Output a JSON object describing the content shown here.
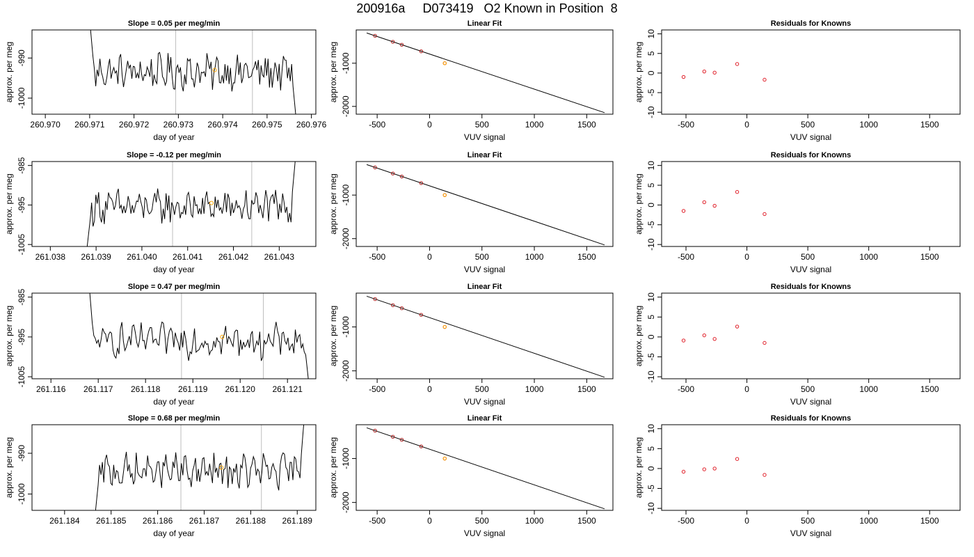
{
  "main_title": "200916a     D073419   O2 Known in Position  8",
  "colors": {
    "trace": "#000000",
    "vline": "#bebebe",
    "highlight": "#ffa500",
    "resid_point": "#e0202a",
    "fit_point": "#b22222",
    "axis": "#000000"
  },
  "chart_data": [
    {
      "type": "line",
      "panel": "time-series-row-1",
      "title": "Slope =  0.05  per meg/min",
      "xlabel": "day of year",
      "ylabel": "approx. per meg",
      "xlim": [
        260.9697,
        260.9761
      ],
      "ylim": [
        -1004,
        -983
      ],
      "x_ticks": [
        "260.970",
        "260.971",
        "260.972",
        "260.973",
        "260.974",
        "260.975",
        "260.976"
      ],
      "x_tick_values": [
        260.97,
        260.971,
        260.972,
        260.973,
        260.974,
        260.975,
        260.976
      ],
      "y_ticks": [
        "-1000",
        "-990"
      ],
      "y_tick_values": [
        -1000,
        -990
      ],
      "vlines": [
        260.97294,
        260.97467
      ],
      "marker": [
        260.97382,
        -993
      ],
      "trace_start": 260.97098,
      "trace_end": 260.97568,
      "trace_level": -993.5,
      "trace_start_value": -978,
      "trace_end_value": -1008
    },
    {
      "type": "line",
      "panel": "time-series-row-2",
      "title": "Slope =  -0.12  per meg/min",
      "xlabel": "day of year",
      "ylabel": "approx. per meg",
      "xlim": [
        261.0376,
        261.0438
      ],
      "ylim": [
        -1005.5,
        -984
      ],
      "x_ticks": [
        "261.038",
        "261.039",
        "261.040",
        "261.041",
        "261.042",
        "261.043"
      ],
      "x_tick_values": [
        261.038,
        261.039,
        261.04,
        261.041,
        261.042,
        261.043
      ],
      "y_ticks": [
        "-1005",
        "-995",
        "-985"
      ],
      "y_tick_values": [
        -1005,
        -995,
        -985
      ],
      "vlines": [
        261.04067,
        261.0424
      ],
      "marker": [
        261.04152,
        -994.5
      ],
      "trace_start": 261.03878,
      "trace_end": 261.04338,
      "trace_level": -995.5,
      "trace_start_value": -1008,
      "trace_end_value": -980
    },
    {
      "type": "line",
      "panel": "time-series-row-3",
      "title": "Slope =  0.47  per meg/min",
      "xlabel": "day of year",
      "ylabel": "approx. per meg",
      "xlim": [
        261.1156,
        261.1216
      ],
      "ylim": [
        -1005.5,
        -984
      ],
      "x_ticks": [
        "261.116",
        "261.117",
        "261.118",
        "261.119",
        "261.120",
        "261.121"
      ],
      "x_tick_values": [
        261.116,
        261.117,
        261.118,
        261.119,
        261.12,
        261.121
      ],
      "y_ticks": [
        "-1005",
        "-995",
        "-985"
      ],
      "y_tick_values": [
        -1005,
        -995,
        -985
      ],
      "vlines": [
        261.11876,
        261.12049
      ],
      "marker": [
        261.11962,
        -995
      ],
      "trace_start": 261.11678,
      "trace_end": 261.12148,
      "trace_level": -996,
      "trace_start_value": -978,
      "trace_end_value": -1010
    },
    {
      "type": "line",
      "panel": "time-series-row-4",
      "title": "Slope =  0.68  per meg/min",
      "xlabel": "day of year",
      "ylabel": "approx. per meg",
      "xlim": [
        261.1833,
        261.1894
      ],
      "ylim": [
        -1004,
        -983
      ],
      "x_ticks": [
        "261.184",
        "261.185",
        "261.186",
        "261.187",
        "261.188",
        "261.189"
      ],
      "x_tick_values": [
        261.184,
        261.185,
        261.186,
        261.187,
        261.188,
        261.189
      ],
      "y_ticks": [
        "-1000",
        "-990"
      ],
      "y_tick_values": [
        -1000,
        -990
      ],
      "vlines": [
        261.1865,
        261.18823
      ],
      "marker": [
        261.18737,
        -993.5
      ],
      "trace_start": 261.18463,
      "trace_end": 261.18918,
      "trace_level": -994.5,
      "trace_start_value": -1008,
      "trace_end_value": -977
    },
    {
      "type": "scatter",
      "panel": "linear-fit-row-1",
      "title": "Linear Fit",
      "xlabel": "VUV signal",
      "ylabel": "approx. per meg",
      "xlim": [
        -700,
        1750
      ],
      "ylim": [
        -2180,
        -230
      ],
      "x_ticks": [
        "-500",
        "0",
        "500",
        "1000",
        "1500"
      ],
      "x_tick_values": [
        -500,
        0,
        500,
        1000,
        1500
      ],
      "y_ticks": [
        "-2000",
        "-1000"
      ],
      "y_tick_values": [
        -2000,
        -1000
      ],
      "line": [
        [
          -600,
          -300
        ],
        [
          1670,
          -2145
        ]
      ],
      "points": [
        [
          -520,
          -366
        ],
        [
          -350,
          -505
        ],
        [
          -265,
          -574
        ],
        [
          -80,
          -724
        ],
        [
          145,
          -1000
        ]
      ],
      "highlight_point": [
        145,
        -1000
      ]
    },
    {
      "type": "scatter",
      "panel": "linear-fit-row-2",
      "title": "Linear Fit",
      "xlabel": "VUV signal",
      "ylabel": "approx. per meg",
      "xlim": [
        -700,
        1750
      ],
      "ylim": [
        -2180,
        -230
      ],
      "x_ticks": [
        "-500",
        "0",
        "500",
        "1000",
        "1500"
      ],
      "x_tick_values": [
        -500,
        0,
        500,
        1000,
        1500
      ],
      "y_ticks": [
        "-2000",
        "-1000"
      ],
      "y_tick_values": [
        -2000,
        -1000
      ],
      "line": [
        [
          -600,
          -300
        ],
        [
          1670,
          -2145
        ]
      ],
      "points": [
        [
          -520,
          -366
        ],
        [
          -350,
          -505
        ],
        [
          -265,
          -574
        ],
        [
          -80,
          -724
        ],
        [
          145,
          -1000
        ]
      ],
      "highlight_point": [
        145,
        -1000
      ]
    },
    {
      "type": "scatter",
      "panel": "linear-fit-row-3",
      "title": "Linear Fit",
      "xlabel": "VUV signal",
      "ylabel": "approx. per meg",
      "xlim": [
        -700,
        1750
      ],
      "ylim": [
        -2180,
        -230
      ],
      "x_ticks": [
        "-500",
        "0",
        "500",
        "1000",
        "1500"
      ],
      "x_tick_values": [
        -500,
        0,
        500,
        1000,
        1500
      ],
      "y_ticks": [
        "-2000",
        "-1000"
      ],
      "y_tick_values": [
        -2000,
        -1000
      ],
      "line": [
        [
          -600,
          -300
        ],
        [
          1670,
          -2145
        ]
      ],
      "points": [
        [
          -520,
          -366
        ],
        [
          -350,
          -505
        ],
        [
          -265,
          -574
        ],
        [
          -80,
          -724
        ],
        [
          145,
          -1000
        ]
      ],
      "highlight_point": [
        145,
        -1000
      ]
    },
    {
      "type": "scatter",
      "panel": "linear-fit-row-4",
      "title": "Linear Fit",
      "xlabel": "VUV signal",
      "ylabel": "approx. per meg",
      "xlim": [
        -700,
        1750
      ],
      "ylim": [
        -2180,
        -230
      ],
      "x_ticks": [
        "-500",
        "0",
        "500",
        "1000",
        "1500"
      ],
      "x_tick_values": [
        -500,
        0,
        500,
        1000,
        1500
      ],
      "y_ticks": [
        "-2000",
        "-1000"
      ],
      "y_tick_values": [
        -2000,
        -1000
      ],
      "line": [
        [
          -600,
          -300
        ],
        [
          1670,
          -2145
        ]
      ],
      "points": [
        [
          -520,
          -366
        ],
        [
          -350,
          -505
        ],
        [
          -265,
          -574
        ],
        [
          -80,
          -724
        ],
        [
          145,
          -1000
        ]
      ],
      "highlight_point": [
        145,
        -1000
      ]
    },
    {
      "type": "scatter",
      "panel": "residuals-row-1",
      "title": "Residuals for Knowns",
      "xlabel": "VUV signal",
      "ylabel": "approx. per meg",
      "xlim": [
        -700,
        1750
      ],
      "ylim": [
        -10.5,
        11
      ],
      "x_ticks": [
        "-500",
        "0",
        "500",
        "1000",
        "1500"
      ],
      "x_tick_values": [
        -500,
        0,
        500,
        1000,
        1500
      ],
      "y_ticks": [
        "-10",
        "-5",
        "0",
        "5",
        "10"
      ],
      "y_tick_values": [
        -10,
        -5,
        0,
        5,
        10
      ],
      "points": [
        [
          -520,
          -1.0
        ],
        [
          -350,
          0.4
        ],
        [
          -265,
          0.1
        ],
        [
          -80,
          2.3
        ],
        [
          145,
          -1.7
        ]
      ]
    },
    {
      "type": "scatter",
      "panel": "residuals-row-2",
      "title": "Residuals for Knowns",
      "xlabel": "VUV signal",
      "ylabel": "approx. per meg",
      "xlim": [
        -700,
        1750
      ],
      "ylim": [
        -10.5,
        11
      ],
      "x_ticks": [
        "-500",
        "0",
        "500",
        "1000",
        "1500"
      ],
      "x_tick_values": [
        -500,
        0,
        500,
        1000,
        1500
      ],
      "y_ticks": [
        "-10",
        "-5",
        "0",
        "5",
        "10"
      ],
      "y_tick_values": [
        -10,
        -5,
        0,
        5,
        10
      ],
      "points": [
        [
          -520,
          -1.5
        ],
        [
          -350,
          0.7
        ],
        [
          -265,
          -0.2
        ],
        [
          -80,
          3.3
        ],
        [
          145,
          -2.3
        ]
      ]
    },
    {
      "type": "scatter",
      "panel": "residuals-row-3",
      "title": "Residuals for Knowns",
      "xlabel": "VUV signal",
      "ylabel": "approx. per meg",
      "xlim": [
        -700,
        1750
      ],
      "ylim": [
        -10.5,
        11
      ],
      "x_ticks": [
        "-500",
        "0",
        "500",
        "1000",
        "1500"
      ],
      "x_tick_values": [
        -500,
        0,
        500,
        1000,
        1500
      ],
      "y_ticks": [
        "-10",
        "-5",
        "0",
        "5",
        "10"
      ],
      "y_tick_values": [
        -10,
        -5,
        0,
        5,
        10
      ],
      "points": [
        [
          -520,
          -0.9
        ],
        [
          -350,
          0.4
        ],
        [
          -265,
          -0.5
        ],
        [
          -80,
          2.6
        ],
        [
          145,
          -1.5
        ]
      ]
    },
    {
      "type": "scatter",
      "panel": "residuals-row-4",
      "title": "Residuals for Knowns",
      "xlabel": "VUV signal",
      "ylabel": "approx. per meg",
      "xlim": [
        -700,
        1750
      ],
      "ylim": [
        -10.5,
        11
      ],
      "x_ticks": [
        "-500",
        "0",
        "500",
        "1000",
        "1500"
      ],
      "x_tick_values": [
        -500,
        0,
        500,
        1000,
        1500
      ],
      "y_ticks": [
        "-10",
        "-5",
        "0",
        "5",
        "10"
      ],
      "y_tick_values": [
        -10,
        -5,
        0,
        5,
        10
      ],
      "points": [
        [
          -520,
          -0.8
        ],
        [
          -350,
          -0.2
        ],
        [
          -265,
          0.0
        ],
        [
          -80,
          2.4
        ],
        [
          145,
          -1.6
        ]
      ]
    }
  ]
}
